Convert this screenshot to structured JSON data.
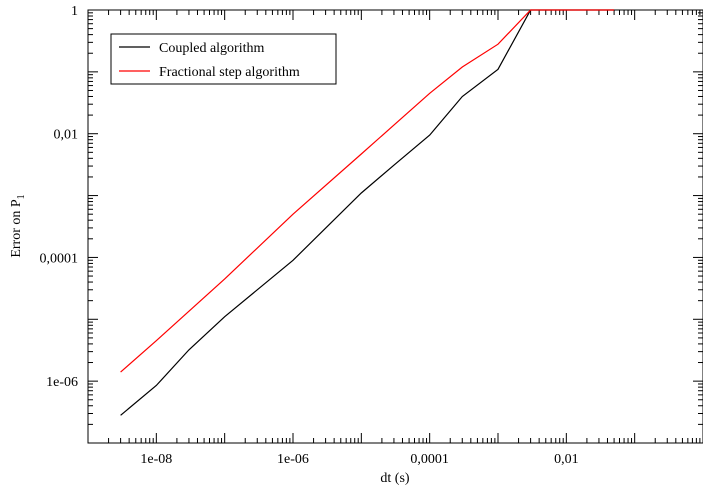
{
  "chart_data": {
    "type": "line",
    "xlabel": "dt (s)",
    "ylabel_main": "Error on P",
    "ylabel_sub": "1",
    "x_scale": "log",
    "y_scale": "log",
    "xlim": [
      1e-09,
      1
    ],
    "ylim": [
      1e-07,
      1
    ],
    "x_ticks": [
      {
        "value": 1e-08,
        "label": "1e-08"
      },
      {
        "value": 1e-06,
        "label": "1e-06"
      },
      {
        "value": 0.0001,
        "label": "0,0001"
      },
      {
        "value": 0.01,
        "label": "0,01"
      }
    ],
    "y_ticks": [
      {
        "value": 1e-06,
        "label": "1e-06"
      },
      {
        "value": 0.0001,
        "label": "0,0001"
      },
      {
        "value": 0.01,
        "label": "0,01"
      },
      {
        "value": 1,
        "label": "1"
      }
    ],
    "grid": false,
    "legend_position": "top-left",
    "series": [
      {
        "name": "Coupled algorithm",
        "color": "#000000",
        "x": [
          3e-09,
          1e-08,
          3e-08,
          1e-07,
          1e-06,
          1e-05,
          3e-05,
          0.0001,
          0.0003,
          0.001,
          0.003,
          0.05
        ],
        "y": [
          2.8e-07,
          8.5e-07,
          3.2e-06,
          1.1e-05,
          9e-05,
          0.0011,
          0.0031,
          0.0095,
          0.04,
          0.11,
          1.0,
          1.0
        ]
      },
      {
        "name": "Fractional step algorithm",
        "color": "#ff0000",
        "x": [
          3e-09,
          1e-08,
          1e-07,
          1e-06,
          1e-05,
          0.0001,
          0.0003,
          0.001,
          0.003,
          0.05
        ],
        "y": [
          1.4e-06,
          4.5e-06,
          4.5e-05,
          0.0005,
          0.0047,
          0.045,
          0.12,
          0.28,
          1.0,
          1.0
        ]
      }
    ]
  }
}
